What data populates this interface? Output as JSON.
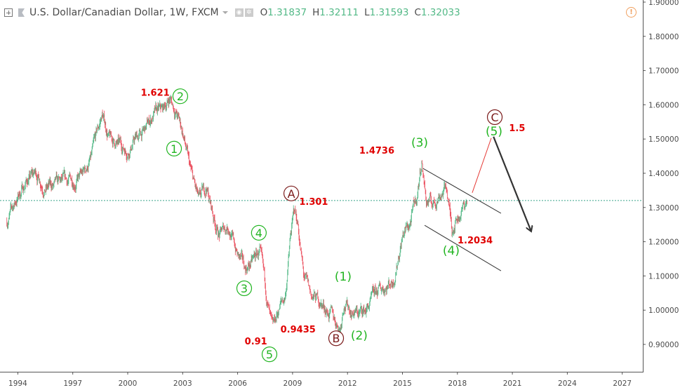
{
  "header": {
    "symbol_title": "U.S. Dollar/Canadian Dollar, 1W, FXCM",
    "ohlc": [
      {
        "key": "O",
        "value": "1.31837"
      },
      {
        "key": "H",
        "value": "1.32111"
      },
      {
        "key": "L",
        "value": "1.31593"
      },
      {
        "key": "C",
        "value": "1.32033"
      }
    ],
    "icons": [
      "add-symbol-icon",
      "flag-icon",
      "dropdown-caret-icon",
      "eye-icon",
      "gear-icon",
      "warning-icon"
    ]
  },
  "colors": {
    "up": "#53b987",
    "down": "#eb4d5c",
    "label_red": "#e00000",
    "wave_green": "#22b522",
    "wave_maroon": "#7a1a1a",
    "last_price_line": "#3aa58a"
  },
  "chart_data": {
    "type": "candlestick",
    "timeframe": "1W",
    "x_ticks": [
      "1994",
      "1997",
      "2000",
      "2003",
      "2006",
      "2009",
      "2012",
      "2015",
      "2018",
      "2021",
      "2024",
      "2027"
    ],
    "y_ticks": [
      "0.90000",
      "1.00000",
      "1.10000",
      "1.20000",
      "1.30000",
      "1.40000",
      "1.50000",
      "1.60000",
      "1.70000",
      "1.80000",
      "1.90000"
    ],
    "ylim": [
      0.83,
      1.9
    ],
    "xlim": [
      1993.3,
      2029.0
    ],
    "last_price": 1.32033,
    "price_path": [
      [
        1993.4,
        1.26
      ],
      [
        1993.9,
        1.32
      ],
      [
        1994.5,
        1.38
      ],
      [
        1995.0,
        1.4
      ],
      [
        1995.5,
        1.36
      ],
      [
        1996.0,
        1.36
      ],
      [
        1996.6,
        1.37
      ],
      [
        1997.0,
        1.38
      ],
      [
        1997.5,
        1.39
      ],
      [
        1998.0,
        1.44
      ],
      [
        1998.6,
        1.57
      ],
      [
        1999.0,
        1.5
      ],
      [
        1999.5,
        1.48
      ],
      [
        2000.0,
        1.47
      ],
      [
        2000.4,
        1.5
      ],
      [
        2000.9,
        1.52
      ],
      [
        2001.4,
        1.57
      ],
      [
        2001.9,
        1.58
      ],
      [
        2002.3,
        1.62
      ],
      [
        2002.7,
        1.57
      ],
      [
        2003.0,
        1.52
      ],
      [
        2003.4,
        1.41
      ],
      [
        2003.9,
        1.31
      ],
      [
        2004.3,
        1.36
      ],
      [
        2004.7,
        1.27
      ],
      [
        2005.0,
        1.22
      ],
      [
        2005.5,
        1.25
      ],
      [
        2006.0,
        1.16
      ],
      [
        2006.4,
        1.12
      ],
      [
        2006.8,
        1.14
      ],
      [
        2007.2,
        1.17
      ],
      [
        2007.6,
        1.03
      ],
      [
        2007.9,
        0.93
      ],
      [
        2008.3,
        1.01
      ],
      [
        2008.6,
        1.04
      ],
      [
        2008.9,
        1.22
      ],
      [
        2009.1,
        1.29
      ],
      [
        2009.3,
        1.25
      ],
      [
        2009.6,
        1.1
      ],
      [
        2010.0,
        1.04
      ],
      [
        2010.4,
        1.03
      ],
      [
        2010.9,
        1.0
      ],
      [
        2011.3,
        0.97
      ],
      [
        2011.6,
        0.95
      ],
      [
        2011.8,
        1.03
      ],
      [
        2012.2,
        1.0
      ],
      [
        2012.6,
        0.99
      ],
      [
        2013.0,
        1.0
      ],
      [
        2013.5,
        1.04
      ],
      [
        2014.0,
        1.07
      ],
      [
        2014.5,
        1.09
      ],
      [
        2015.0,
        1.22
      ],
      [
        2015.4,
        1.25
      ],
      [
        2015.8,
        1.33
      ],
      [
        2016.05,
        1.44
      ],
      [
        2016.3,
        1.32
      ],
      [
        2016.7,
        1.31
      ],
      [
        2017.0,
        1.34
      ],
      [
        2017.4,
        1.36
      ],
      [
        2017.7,
        1.24
      ],
      [
        2017.9,
        1.27
      ],
      [
        2018.2,
        1.29
      ],
      [
        2018.55,
        1.32
      ]
    ],
    "annotations": [
      {
        "text": "1.621",
        "kind": "price",
        "x": 2001.5,
        "y": 1.637
      },
      {
        "text": "2",
        "kind": "circle-green",
        "x": 2002.87,
        "y": 1.625
      },
      {
        "text": "1",
        "kind": "circle-green",
        "x": 2002.53,
        "y": 1.472
      },
      {
        "text": "4",
        "kind": "circle-green",
        "x": 2007.16,
        "y": 1.226
      },
      {
        "text": "3",
        "kind": "circle-green",
        "x": 2006.36,
        "y": 1.064
      },
      {
        "text": "0.91",
        "kind": "price",
        "x": 2007.0,
        "y": 0.91
      },
      {
        "text": "5",
        "kind": "circle-green",
        "x": 2007.74,
        "y": 0.871
      },
      {
        "text": "A",
        "kind": "circle-maroon",
        "x": 2008.93,
        "y": 1.341
      },
      {
        "text": "1.301",
        "kind": "price",
        "x": 2010.15,
        "y": 1.318
      },
      {
        "text": "(1)",
        "kind": "paren-green",
        "x": 2011.76,
        "y": 1.099
      },
      {
        "text": "0.9435",
        "kind": "price",
        "x": 2009.3,
        "y": 0.945
      },
      {
        "text": "B",
        "kind": "circle-maroon",
        "x": 2011.38,
        "y": 0.918
      },
      {
        "text": "(2)",
        "kind": "paren-green",
        "x": 2012.64,
        "y": 0.927
      },
      {
        "text": "1.4736",
        "kind": "price",
        "x": 2013.6,
        "y": 1.468
      },
      {
        "text": "(3)",
        "kind": "paren-green",
        "x": 2015.94,
        "y": 1.49
      },
      {
        "text": "1.2034",
        "kind": "price",
        "x": 2018.97,
        "y": 1.205
      },
      {
        "text": "(4)",
        "kind": "paren-green",
        "x": 2017.66,
        "y": 1.175
      },
      {
        "text": "C",
        "kind": "circle-maroon",
        "x": 2020.04,
        "y": 1.564
      },
      {
        "text": "(5)",
        "kind": "paren-green",
        "x": 2020.0,
        "y": 1.523
      },
      {
        "text": "1.5",
        "kind": "price",
        "x": 2021.26,
        "y": 1.533
      }
    ],
    "drawings": [
      {
        "name": "channel-upper-line",
        "color": "#333333",
        "from": [
          2016.13,
          1.414
        ],
        "to": [
          2020.38,
          1.283
        ]
      },
      {
        "name": "channel-lower-line",
        "color": "#333333",
        "from": [
          2016.21,
          1.248
        ],
        "to": [
          2020.38,
          1.115
        ]
      },
      {
        "name": "projection-red-line",
        "color": "#e53935",
        "from": [
          2018.81,
          1.343
        ],
        "to": [
          2019.85,
          1.503
        ]
      },
      {
        "name": "projection-down-arrow",
        "color": "#333333",
        "from": [
          2019.97,
          1.507
        ],
        "to": [
          2022.03,
          1.23
        ],
        "arrow": true
      }
    ]
  }
}
